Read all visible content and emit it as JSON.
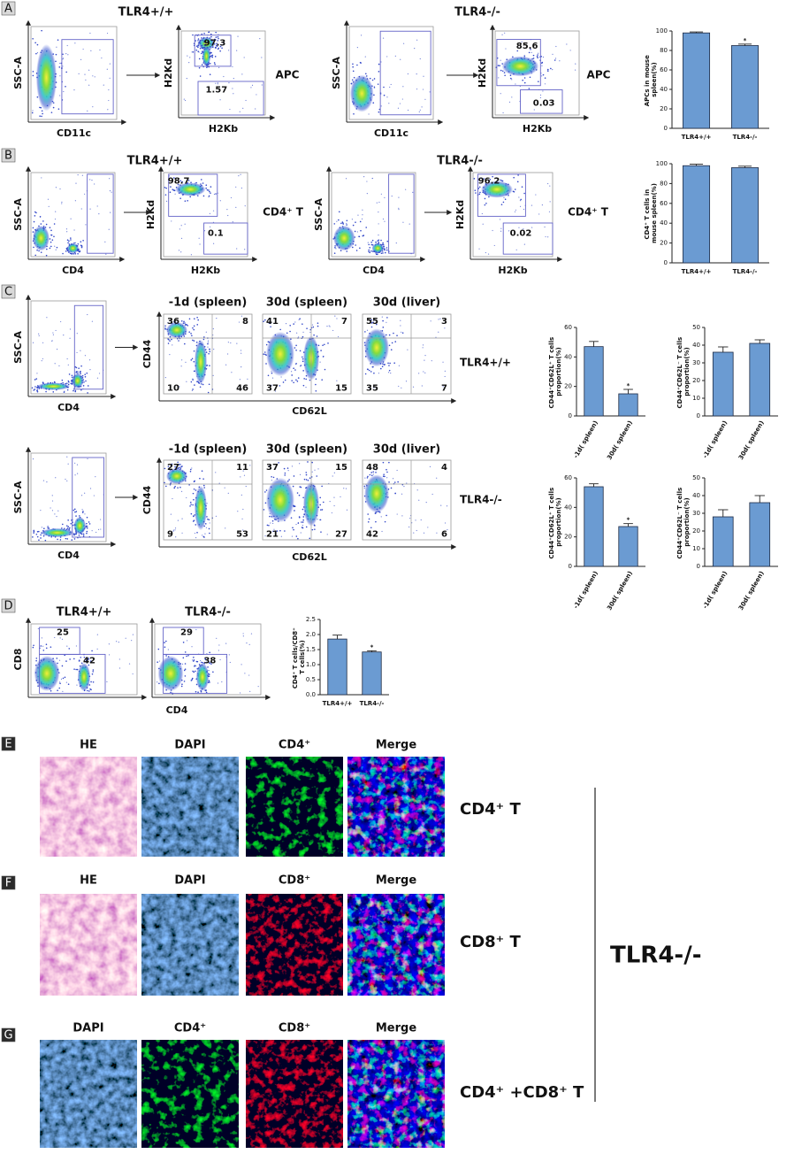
{
  "panel_a": {
    "label": "A",
    "titles": [
      "TLR4+/+",
      "TLR4-/-"
    ],
    "cell_labels": [
      "APC",
      "APC"
    ],
    "plots": [
      {
        "y_label": "SSC-A",
        "x_label": "CD11c"
      },
      {
        "y_label": "H2Kd",
        "x_label": "H2Kb",
        "gates": [
          97.3,
          1.57
        ]
      },
      {
        "y_label": "SSC-A",
        "x_label": "CD11c"
      },
      {
        "y_label": "H2Kd",
        "x_label": "H2Kb",
        "gates": [
          85.6,
          0.03
        ]
      }
    ]
  },
  "panel_b": {
    "label": "B",
    "titles": [
      "TLR4+/+",
      "TLR4-/-"
    ],
    "cell_labels": [
      "CD4⁺ T",
      "CD4⁺ T"
    ],
    "plots": [
      {
        "y_label": "SSC-A",
        "x_label": "CD4"
      },
      {
        "y_label": "H2Kd",
        "x_label": "H2Kb",
        "gates": [
          98.7,
          0.1
        ]
      },
      {
        "y_label": "SSC-A",
        "x_label": "CD4"
      },
      {
        "y_label": "H2Kd",
        "x_label": "H2Kb",
        "gates": [
          96.2,
          0.02
        ]
      }
    ]
  },
  "panel_c": {
    "label": "C",
    "rows": [
      {
        "group": "TLR4+/+",
        "gate_plot": {
          "y_label": "SSC-A",
          "x_label": "CD4"
        },
        "y_label": "CD44",
        "x_label": "CD62L",
        "plots": [
          {
            "title": "-1d (spleen)",
            "quadrants": [
              36,
              8,
              10,
              46
            ]
          },
          {
            "title": "30d (spleen)",
            "quadrants": [
              41,
              7,
              37,
              15
            ]
          },
          {
            "title": "30d (liver)",
            "quadrants": [
              55,
              3,
              35,
              7
            ]
          }
        ]
      },
      {
        "group": "TLR4-/-",
        "gate_plot": {
          "y_label": "SSC-A",
          "x_label": "CD4"
        },
        "y_label": "CD44",
        "x_label": "CD62L",
        "plots": [
          {
            "title": "-1d (spleen)",
            "quadrants": [
              27,
              11,
              9,
              53
            ]
          },
          {
            "title": "30d (spleen)",
            "quadrants": [
              37,
              15,
              21,
              27
            ]
          },
          {
            "title": "30d (liver)",
            "quadrants": [
              48,
              4,
              42,
              6
            ]
          }
        ]
      }
    ]
  },
  "panel_d": {
    "label": "D",
    "y_label": "CD8",
    "x_label": "CD4",
    "plots": [
      {
        "title": "TLR4+/+",
        "gates": [
          25,
          42
        ]
      },
      {
        "title": "TLR4-/-",
        "gates": [
          29,
          38
        ]
      }
    ]
  },
  "panel_e": {
    "label": "E",
    "columns": [
      "HE",
      "DAPI",
      "CD4⁺",
      "Merge"
    ],
    "caption": "CD4⁺ T"
  },
  "panel_f": {
    "label": "F",
    "columns": [
      "HE",
      "DAPI",
      "CD8⁺",
      "Merge"
    ],
    "caption": "CD8⁺ T"
  },
  "panel_g": {
    "label": "G",
    "columns": [
      "DAPI",
      "CD4⁺",
      "CD8⁺",
      "Merge"
    ],
    "caption": "CD4⁺ +CD8⁺ T"
  },
  "group_label": "TLR4-/-",
  "chart_data": [
    {
      "type": "bar",
      "y_label": "APCs in mouse spleen(%)",
      "categories": [
        "TLR4+/+",
        "TLR4-/-"
      ],
      "values": [
        98,
        85
      ],
      "errors": [
        1,
        1.5
      ],
      "value_annotations": [
        null,
        "*"
      ],
      "color": "#6b9bd2",
      "ylim": [
        0,
        100
      ],
      "yticks": [
        0,
        20,
        40,
        60,
        80,
        100
      ]
    },
    {
      "type": "bar",
      "y_label": "CD4⁺ T cells in mouse spleen(%)",
      "categories": [
        "TLR4+/+",
        "TLR4-/-"
      ],
      "values": [
        98,
        96
      ],
      "errors": [
        1.5,
        1.5
      ],
      "color": "#6b9bd2",
      "ylim": [
        0,
        100
      ],
      "yticks": [
        0,
        20,
        40,
        60,
        80,
        100
      ]
    },
    {
      "type": "bar",
      "y_label": "CD44⁺CD62L⁺ T cells proportion(%)",
      "categories": [
        "-1d( spleen)",
        "30d( spleen)"
      ],
      "values": [
        47,
        15
      ],
      "errors": [
        3.5,
        3
      ],
      "value_annotations": [
        null,
        "*"
      ],
      "color": "#6b9bd2",
      "ylim": [
        0,
        60
      ],
      "yticks": [
        0,
        20,
        40,
        60
      ]
    },
    {
      "type": "bar",
      "y_label": "CD44⁺CD62L⁻ T cells proportion(%)",
      "categories": [
        "-1d( spleen)",
        "30d( spleen)"
      ],
      "values": [
        36,
        41
      ],
      "errors": [
        3,
        2
      ],
      "color": "#6b9bd2",
      "ylim": [
        0,
        50
      ],
      "yticks": [
        0,
        10,
        20,
        30,
        40,
        50
      ]
    },
    {
      "type": "bar",
      "y_label": "CD44⁺CD62L⁺ T cells proportion(%)",
      "categories": [
        "-1d( spleen)",
        "30d( spleen)"
      ],
      "values": [
        54,
        27
      ],
      "errors": [
        2,
        2
      ],
      "value_annotations": [
        null,
        "*"
      ],
      "color": "#6b9bd2",
      "ylim": [
        0,
        60
      ],
      "yticks": [
        0,
        20,
        40,
        60
      ]
    },
    {
      "type": "bar",
      "y_label": "CD44⁺CD62L⁻ T cells proportion(%)",
      "categories": [
        "-1d( spleen)",
        "30d( spleen)"
      ],
      "values": [
        28,
        36
      ],
      "errors": [
        4,
        4
      ],
      "color": "#6b9bd2",
      "ylim": [
        0,
        50
      ],
      "yticks": [
        0,
        10,
        20,
        30,
        40,
        50
      ]
    },
    {
      "type": "bar",
      "y_label": "CD4⁺ T cells/CD8⁺ T cells(%)",
      "categories": [
        "TLR4+/+",
        "TLR4-/-"
      ],
      "values": [
        1.85,
        1.42
      ],
      "errors": [
        0.13,
        0.04
      ],
      "value_annotations": [
        null,
        "*"
      ],
      "color": "#6b9bd2",
      "ylim": [
        0,
        2.5
      ],
      "yticks": [
        {
          "value": 0,
          "label": "0.0"
        },
        0.5,
        {
          "value": 1,
          "label": "1.0"
        },
        1.5,
        {
          "value": 2,
          "label": "2.0"
        },
        2.5
      ]
    }
  ]
}
